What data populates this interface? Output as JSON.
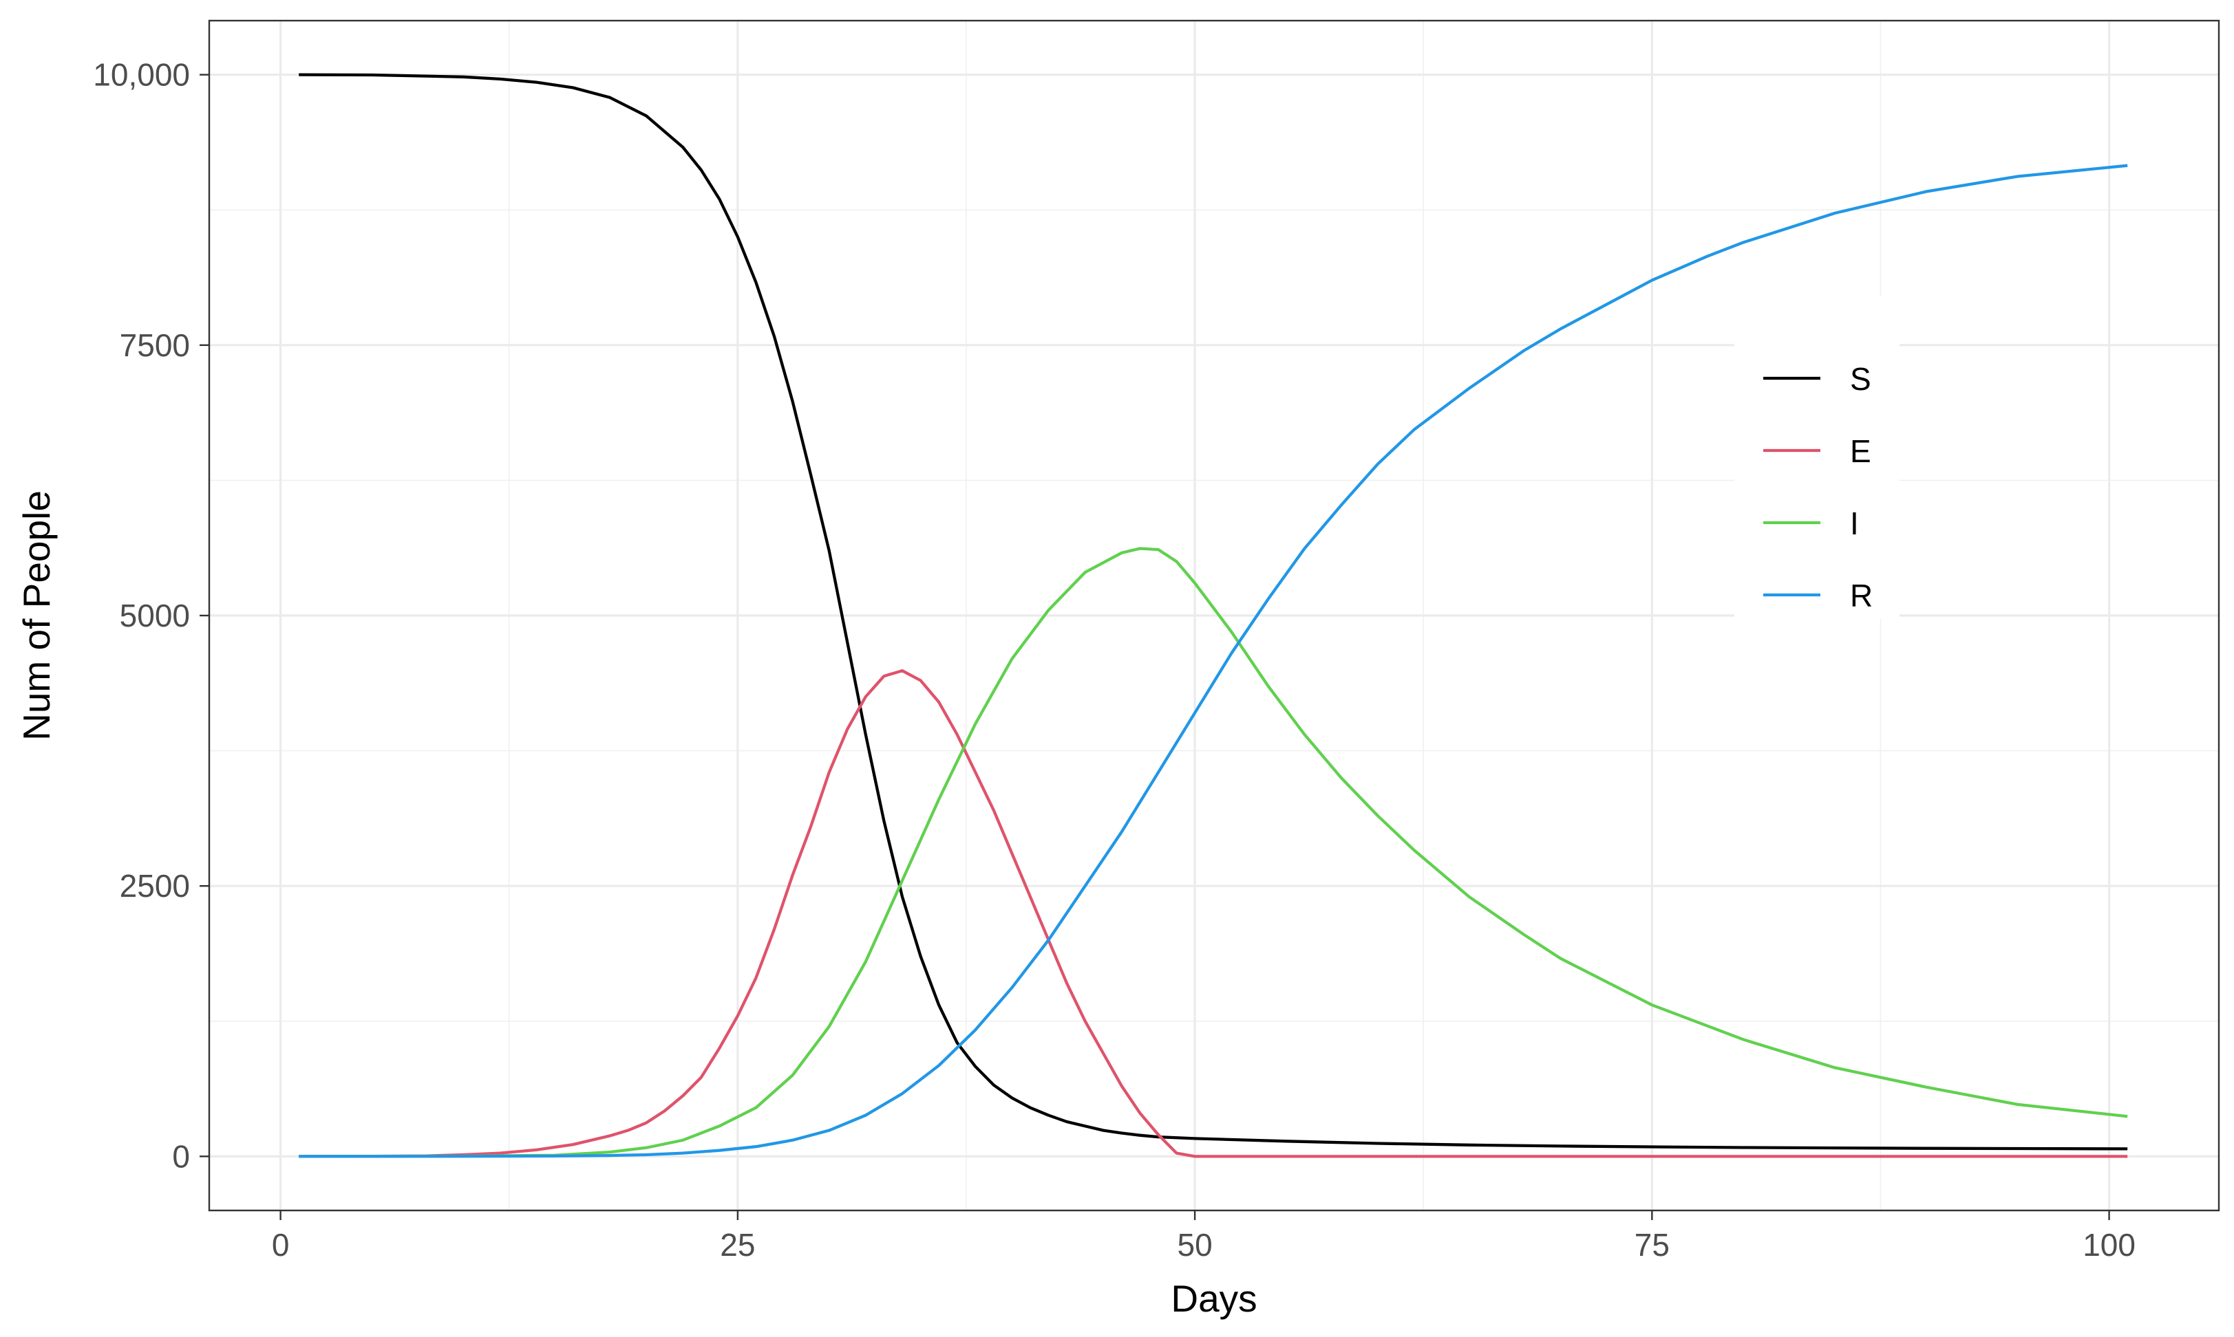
{
  "chart_data": {
    "type": "line",
    "xlabel": "Days",
    "ylabel": "Num of People",
    "xlim": [
      -3.9,
      106
    ],
    "ylim": [
      -500,
      10500
    ],
    "x_ticks": [
      0,
      25,
      50,
      75,
      100
    ],
    "x_tick_labels": [
      "0",
      "25",
      "50",
      "75",
      "100"
    ],
    "y_ticks": [
      0,
      2500,
      5000,
      7500,
      10000
    ],
    "y_tick_labels": [
      "0",
      "2500",
      "5000",
      "7500",
      "10,000"
    ],
    "grid": true,
    "legend_position": "right inside",
    "series": [
      {
        "name": "S",
        "color": "#000000",
        "points": [
          [
            1,
            10000
          ],
          [
            5,
            9998
          ],
          [
            10,
            9980
          ],
          [
            12,
            9960
          ],
          [
            14,
            9930
          ],
          [
            16,
            9880
          ],
          [
            18,
            9790
          ],
          [
            20,
            9620
          ],
          [
            22,
            9330
          ],
          [
            23,
            9120
          ],
          [
            24,
            8850
          ],
          [
            25,
            8500
          ],
          [
            26,
            8080
          ],
          [
            27,
            7580
          ],
          [
            28,
            6980
          ],
          [
            29,
            6300
          ],
          [
            30,
            5600
          ],
          [
            31,
            4750
          ],
          [
            32,
            3900
          ],
          [
            33,
            3100
          ],
          [
            34,
            2400
          ],
          [
            35,
            1850
          ],
          [
            36,
            1400
          ],
          [
            37,
            1050
          ],
          [
            38,
            830
          ],
          [
            39,
            660
          ],
          [
            40,
            540
          ],
          [
            41,
            450
          ],
          [
            42,
            380
          ],
          [
            43,
            320
          ],
          [
            44,
            280
          ],
          [
            45,
            240
          ],
          [
            46,
            215
          ],
          [
            47,
            195
          ],
          [
            48,
            180
          ],
          [
            50,
            165
          ],
          [
            55,
            140
          ],
          [
            60,
            120
          ],
          [
            65,
            105
          ],
          [
            70,
            95
          ],
          [
            75,
            88
          ],
          [
            80,
            82
          ],
          [
            85,
            78
          ],
          [
            90,
            74
          ],
          [
            95,
            72
          ],
          [
            101,
            70
          ]
        ]
      },
      {
        "name": "E",
        "color": "#DF536B",
        "points": [
          [
            1,
            0
          ],
          [
            5,
            1
          ],
          [
            8,
            5
          ],
          [
            10,
            15
          ],
          [
            12,
            30
          ],
          [
            14,
            60
          ],
          [
            16,
            110
          ],
          [
            18,
            190
          ],
          [
            19,
            240
          ],
          [
            20,
            310
          ],
          [
            21,
            420
          ],
          [
            22,
            560
          ],
          [
            23,
            730
          ],
          [
            24,
            1000
          ],
          [
            25,
            1300
          ],
          [
            26,
            1650
          ],
          [
            27,
            2100
          ],
          [
            28,
            2600
          ],
          [
            29,
            3050
          ],
          [
            30,
            3550
          ],
          [
            31,
            3950
          ],
          [
            32,
            4250
          ],
          [
            33,
            4440
          ],
          [
            34,
            4490
          ],
          [
            35,
            4400
          ],
          [
            36,
            4200
          ],
          [
            37,
            3900
          ],
          [
            38,
            3550
          ],
          [
            39,
            3200
          ],
          [
            40,
            2800
          ],
          [
            41,
            2400
          ],
          [
            42,
            2000
          ],
          [
            43,
            1600
          ],
          [
            44,
            1250
          ],
          [
            45,
            950
          ],
          [
            46,
            650
          ],
          [
            47,
            400
          ],
          [
            48,
            200
          ],
          [
            49,
            30
          ],
          [
            50,
            0
          ],
          [
            60,
            0
          ],
          [
            80,
            0
          ],
          [
            101,
            0
          ]
        ]
      },
      {
        "name": "I",
        "color": "#61D04F",
        "points": [
          [
            1,
            0
          ],
          [
            10,
            2
          ],
          [
            15,
            10
          ],
          [
            18,
            40
          ],
          [
            20,
            80
          ],
          [
            22,
            150
          ],
          [
            24,
            280
          ],
          [
            26,
            450
          ],
          [
            28,
            750
          ],
          [
            30,
            1200
          ],
          [
            32,
            1800
          ],
          [
            34,
            2550
          ],
          [
            36,
            3300
          ],
          [
            38,
            4000
          ],
          [
            40,
            4600
          ],
          [
            42,
            5050
          ],
          [
            44,
            5400
          ],
          [
            46,
            5580
          ],
          [
            47,
            5620
          ],
          [
            48,
            5610
          ],
          [
            49,
            5500
          ],
          [
            50,
            5300
          ],
          [
            52,
            4850
          ],
          [
            54,
            4350
          ],
          [
            56,
            3900
          ],
          [
            58,
            3500
          ],
          [
            60,
            3150
          ],
          [
            62,
            2830
          ],
          [
            65,
            2400
          ],
          [
            68,
            2050
          ],
          [
            70,
            1830
          ],
          [
            75,
            1400
          ],
          [
            80,
            1080
          ],
          [
            85,
            820
          ],
          [
            90,
            640
          ],
          [
            95,
            480
          ],
          [
            101,
            370
          ]
        ]
      },
      {
        "name": "R",
        "color": "#2297E6",
        "points": [
          [
            1,
            0
          ],
          [
            10,
            1
          ],
          [
            15,
            3
          ],
          [
            18,
            8
          ],
          [
            20,
            15
          ],
          [
            22,
            30
          ],
          [
            24,
            55
          ],
          [
            26,
            90
          ],
          [
            28,
            150
          ],
          [
            30,
            240
          ],
          [
            32,
            380
          ],
          [
            34,
            580
          ],
          [
            36,
            840
          ],
          [
            38,
            1170
          ],
          [
            40,
            1560
          ],
          [
            42,
            2000
          ],
          [
            44,
            2500
          ],
          [
            46,
            3000
          ],
          [
            48,
            3550
          ],
          [
            50,
            4100
          ],
          [
            52,
            4650
          ],
          [
            54,
            5150
          ],
          [
            56,
            5620
          ],
          [
            58,
            6020
          ],
          [
            60,
            6400
          ],
          [
            62,
            6720
          ],
          [
            65,
            7100
          ],
          [
            68,
            7450
          ],
          [
            70,
            7650
          ],
          [
            73,
            7920
          ],
          [
            75,
            8100
          ],
          [
            78,
            8320
          ],
          [
            80,
            8450
          ],
          [
            85,
            8720
          ],
          [
            90,
            8920
          ],
          [
            95,
            9060
          ],
          [
            101,
            9160
          ]
        ]
      }
    ]
  }
}
